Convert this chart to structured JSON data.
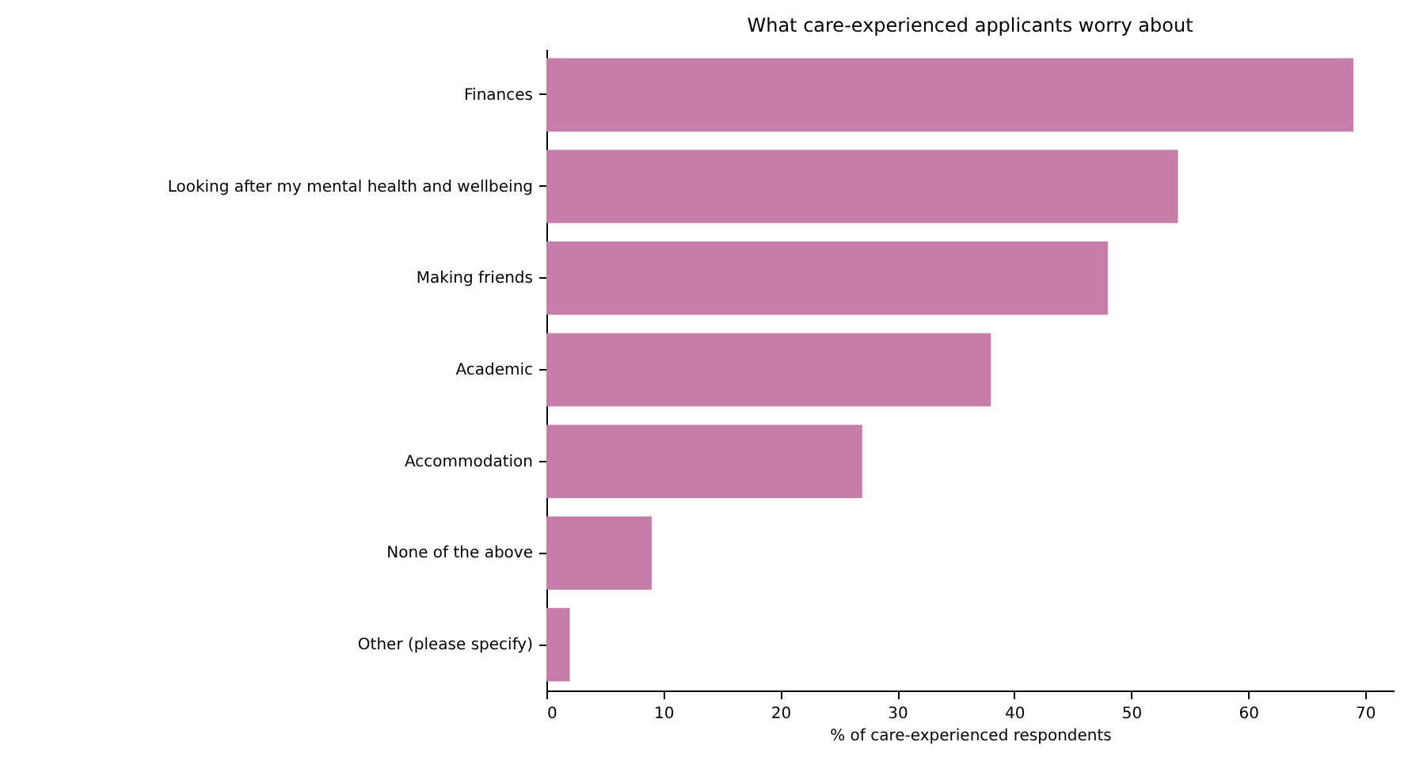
{
  "chart_data": {
    "type": "bar",
    "orientation": "horizontal",
    "title": "What care-experienced applicants worry about",
    "xlabel": "% of care-experienced respondents",
    "categories": [
      "Finances",
      "Looking after my mental health and wellbeing",
      "Making friends",
      "Academic",
      "Accommodation",
      "None of the above",
      "Other (please specify)"
    ],
    "values": [
      69,
      54,
      48,
      38,
      27,
      9,
      2
    ],
    "color": "#c67ea9",
    "xlim": [
      0,
      72.45
    ],
    "xticks": [
      0,
      10,
      20,
      30,
      40,
      50,
      60,
      70
    ],
    "grid": false
  }
}
